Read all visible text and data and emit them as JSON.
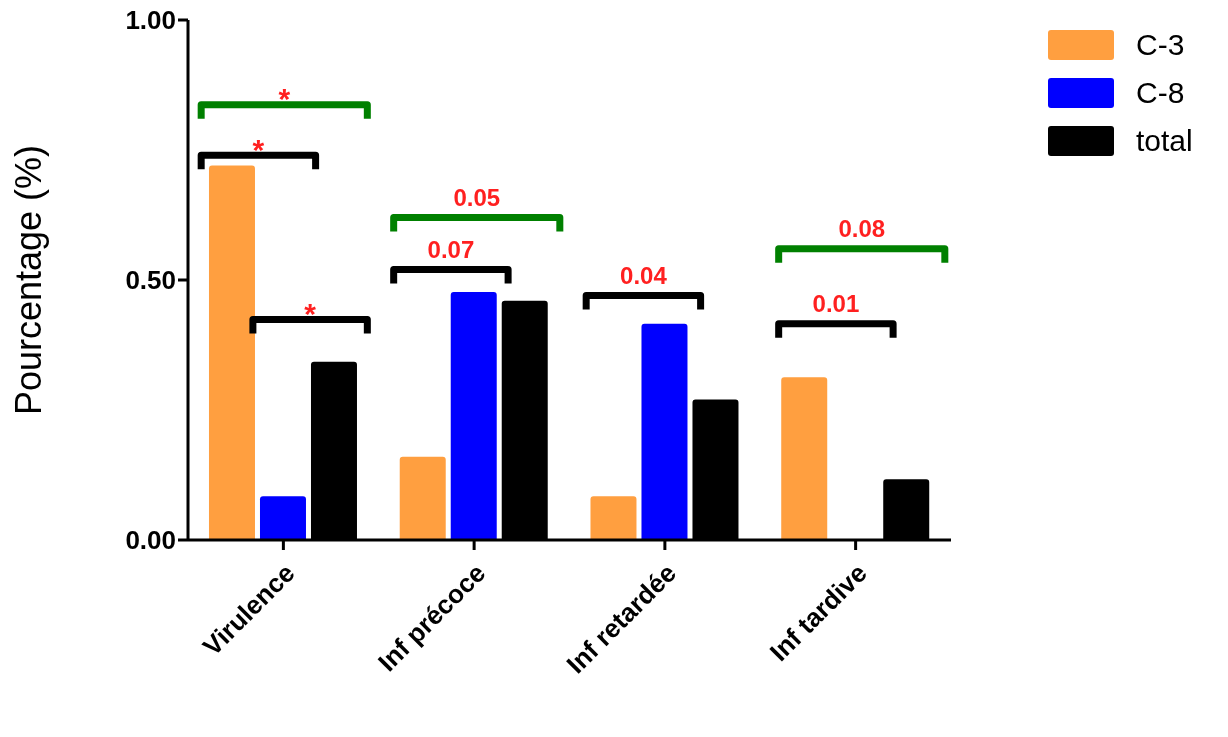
{
  "chart_data": {
    "type": "bar",
    "ylabel": "Pourcentage (%)",
    "categories": [
      "Virulence",
      "Inf précoce",
      "Inf retardée",
      "Inf tardive"
    ],
    "series": [
      {
        "name": "C-3",
        "color": "#ff9f40",
        "values": [
          0.72,
          0.16,
          0.084,
          0.313
        ]
      },
      {
        "name": "C-8",
        "color": "#0000ff",
        "values": [
          0.084,
          0.477,
          0.416,
          0
        ]
      },
      {
        "name": "total",
        "color": "#000000",
        "values": [
          0.343,
          0.46,
          0.27,
          0.117
        ]
      }
    ],
    "ylim": [
      0,
      1
    ],
    "yticks": [
      {
        "value": 0,
        "label": "0.00"
      },
      {
        "value": 0.5,
        "label": "0.50"
      },
      {
        "value": 1,
        "label": "1.00"
      }
    ],
    "legend": "right",
    "grid": false,
    "annotations": [
      "*",
      "*",
      "*",
      "0.05",
      "0.07",
      "0.04",
      "0.08",
      "0.01"
    ]
  }
}
